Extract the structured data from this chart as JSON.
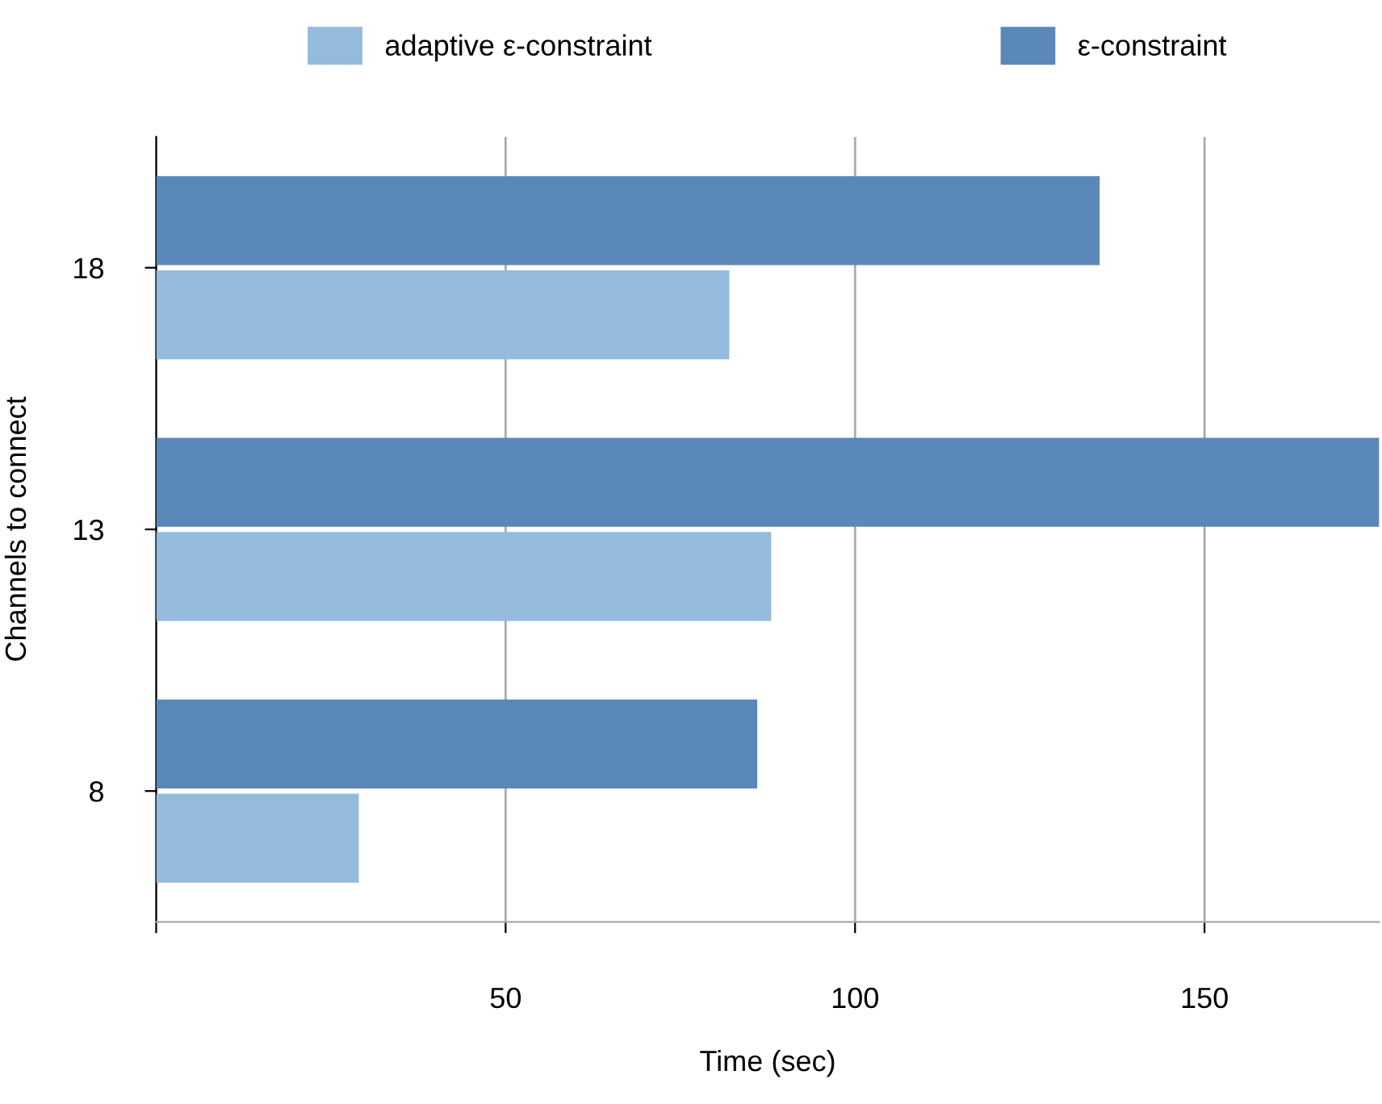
{
  "chart_data": {
    "type": "bar",
    "orientation": "horizontal",
    "xlabel": "Time (sec)",
    "ylabel": "Channels to connect",
    "categories": [
      "18",
      "13",
      "8"
    ],
    "series": [
      {
        "name": "adaptive ε-constraint",
        "color": "#94bbdc",
        "values": [
          82,
          88,
          29
        ]
      },
      {
        "name": "ε-constraint",
        "color": "#5a88b8",
        "values": [
          135,
          175,
          86
        ]
      }
    ],
    "xlim": [
      0,
      175
    ],
    "xticks": [
      {
        "value": 0,
        "label": null
      },
      50,
      100,
      150
    ],
    "grid": "x",
    "legend": "top"
  }
}
